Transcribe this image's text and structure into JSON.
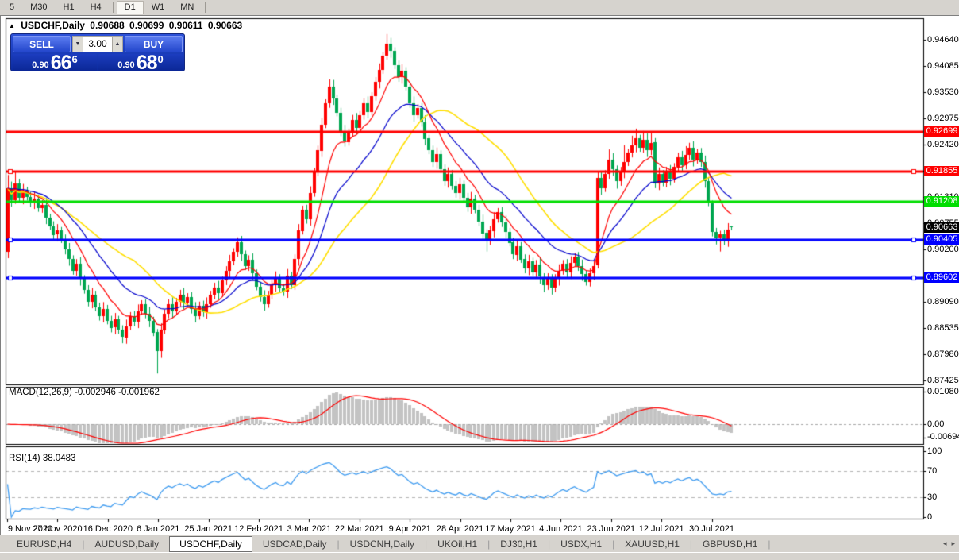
{
  "toolbar": {
    "timeframes": [
      "5",
      "M30",
      "H1",
      "H4",
      "D1",
      "W1",
      "MN"
    ],
    "active": "D1"
  },
  "title": {
    "symbol": "USDCHF,Daily",
    "open": "0.90688",
    "high": "0.90699",
    "low": "0.90611",
    "close": "0.90663"
  },
  "one_click": {
    "sell_label": "SELL",
    "buy_label": "BUY",
    "volume": "3.00",
    "sell_small": "0.90",
    "sell_big": "66",
    "sell_sup": "6",
    "buy_small": "0.90",
    "buy_big": "68",
    "buy_sup": "0"
  },
  "price_axis": {
    "ticks": [
      0.9464,
      0.94085,
      0.9353,
      0.92975,
      0.9242,
      0.91865,
      0.9131,
      0.90755,
      0.902,
      0.89645,
      0.8909,
      0.88535,
      0.8798,
      0.87425
    ],
    "badges": [
      {
        "label": "0.92699",
        "price": 0.92699,
        "color": "#ff0000"
      },
      {
        "label": "0.91855",
        "price": 0.91855,
        "color": "#ff0000"
      },
      {
        "label": "0.91208",
        "price": 0.91208,
        "color": "#00dd00"
      },
      {
        "label": "0.90663",
        "price": 0.90663,
        "color": "#000000"
      },
      {
        "label": "0.90405",
        "price": 0.90405,
        "color": "#0000ff"
      },
      {
        "label": "0.89602",
        "price": 0.89602,
        "color": "#0000ff"
      }
    ]
  },
  "macd_panel": {
    "label": "MACD(12,26,9) -0.002946 -0.001962",
    "axis": [
      "0.010805",
      "0.00",
      "-0.006948"
    ]
  },
  "rsi_panel": {
    "label": "RSI(14) 38.0483",
    "axis": [
      "100",
      "70",
      "30",
      "0"
    ]
  },
  "date_axis": [
    "9 Nov 2020",
    "27 Nov 2020",
    "16 Dec 2020",
    "6 Jan 2021",
    "25 Jan 2021",
    "12 Feb 2021",
    "3 Mar 2021",
    "22 Mar 2021",
    "9 Apr 2021",
    "28 Apr 2021",
    "17 May 2021",
    "4 Jun 2021",
    "23 Jun 2021",
    "12 Jul 2021",
    "30 Jul 2021"
  ],
  "tabs": {
    "items": [
      "EURUSD,H4",
      "AUDUSD,Daily",
      "USDCHF,Daily",
      "USDCAD,Daily",
      "USDCNH,Daily",
      "UKOil,H1",
      "DJ30,H1",
      "USDX,H1",
      "XAUUSD,H1",
      "GBPUSD,H1"
    ],
    "active": "USDCHF,Daily"
  },
  "chart_data": {
    "type": "candlestick",
    "symbol": "USDCHF",
    "timeframe": "Daily",
    "price_range_visible": [
      0.8735,
      0.9509
    ],
    "x_axis_dates": [
      "9 Nov 2020",
      "27 Nov 2020",
      "16 Dec 2020",
      "6 Jan 2021",
      "25 Jan 2021",
      "12 Feb 2021",
      "3 Mar 2021",
      "22 Mar 2021",
      "9 Apr 2021",
      "28 Apr 2021",
      "17 May 2021",
      "4 Jun 2021",
      "23 Jun 2021",
      "12 Jul 2021",
      "30 Jul 2021"
    ],
    "bull_color": "#ff0000",
    "bear_color": "#00a650",
    "candles": [
      [
        0.9015,
        0.9178,
        0.9002,
        0.915
      ],
      [
        0.915,
        0.9164,
        0.9111,
        0.9125
      ],
      [
        0.9125,
        0.9186,
        0.9117,
        0.916
      ],
      [
        0.916,
        0.917,
        0.912,
        0.913
      ],
      [
        0.913,
        0.9159,
        0.9116,
        0.9145
      ],
      [
        0.9145,
        0.9153,
        0.9124,
        0.9132
      ],
      [
        0.9132,
        0.9142,
        0.911,
        0.912
      ],
      [
        0.912,
        0.9142,
        0.9106,
        0.9128
      ],
      [
        0.9128,
        0.9136,
        0.91,
        0.9108
      ],
      [
        0.9108,
        0.9125,
        0.9098,
        0.9115
      ],
      [
        0.9115,
        0.9129,
        0.9074,
        0.9088
      ],
      [
        0.9088,
        0.9096,
        0.9062,
        0.907
      ],
      [
        0.907,
        0.908,
        0.9042,
        0.9052
      ],
      [
        0.9052,
        0.9074,
        0.9038,
        0.906
      ],
      [
        0.906,
        0.9068,
        0.9034,
        0.9042
      ],
      [
        0.9042,
        0.9052,
        0.901,
        0.902
      ],
      [
        0.902,
        0.9034,
        0.8986,
        0.9
      ],
      [
        0.9,
        0.9008,
        0.8967,
        0.8975
      ],
      [
        0.8975,
        0.9,
        0.8965,
        0.899
      ],
      [
        0.899,
        0.9004,
        0.8944,
        0.8958
      ],
      [
        0.8958,
        0.8966,
        0.8927,
        0.8935
      ],
      [
        0.8935,
        0.8945,
        0.89,
        0.891
      ],
      [
        0.891,
        0.8939,
        0.8896,
        0.8925
      ],
      [
        0.8925,
        0.8933,
        0.889,
        0.8898
      ],
      [
        0.8898,
        0.8908,
        0.887,
        0.888
      ],
      [
        0.888,
        0.8909,
        0.8866,
        0.8895
      ],
      [
        0.8895,
        0.8903,
        0.8862,
        0.887
      ],
      [
        0.887,
        0.888,
        0.8845,
        0.8855
      ],
      [
        0.8855,
        0.8886,
        0.8841,
        0.8872
      ],
      [
        0.8872,
        0.888,
        0.8842,
        0.885
      ],
      [
        0.885,
        0.886,
        0.8822,
        0.8835
      ],
      [
        0.8835,
        0.8872,
        0.8821,
        0.8858
      ],
      [
        0.8858,
        0.8888,
        0.885,
        0.888
      ],
      [
        0.888,
        0.889,
        0.8858,
        0.8868
      ],
      [
        0.8868,
        0.8904,
        0.8854,
        0.889
      ],
      [
        0.889,
        0.8913,
        0.8882,
        0.8905
      ],
      [
        0.8905,
        0.8915,
        0.8875,
        0.8885
      ],
      [
        0.8885,
        0.8899,
        0.8856,
        0.887
      ],
      [
        0.887,
        0.8878,
        0.8837,
        0.8845
      ],
      [
        0.8845,
        0.8852,
        0.8758,
        0.8805
      ],
      [
        0.8805,
        0.8864,
        0.8791,
        0.885
      ],
      [
        0.885,
        0.8893,
        0.8842,
        0.8885
      ],
      [
        0.8885,
        0.8915,
        0.8875,
        0.8905
      ],
      [
        0.8905,
        0.8919,
        0.8876,
        0.889
      ],
      [
        0.889,
        0.8918,
        0.8882,
        0.891
      ],
      [
        0.891,
        0.8935,
        0.89,
        0.8925
      ],
      [
        0.8925,
        0.8939,
        0.8894,
        0.8908
      ],
      [
        0.8908,
        0.8928,
        0.89,
        0.892
      ],
      [
        0.892,
        0.893,
        0.8885,
        0.8895
      ],
      [
        0.8895,
        0.8909,
        0.8866,
        0.888
      ],
      [
        0.888,
        0.891,
        0.8872,
        0.8902
      ],
      [
        0.8902,
        0.8912,
        0.8878,
        0.8888
      ],
      [
        0.8888,
        0.8919,
        0.8874,
        0.8905
      ],
      [
        0.8905,
        0.8933,
        0.8897,
        0.8925
      ],
      [
        0.8925,
        0.895,
        0.8915,
        0.894
      ],
      [
        0.894,
        0.8954,
        0.8914,
        0.8928
      ],
      [
        0.8928,
        0.8963,
        0.892,
        0.8955
      ],
      [
        0.8955,
        0.8985,
        0.8945,
        0.8975
      ],
      [
        0.8975,
        0.9009,
        0.8961,
        0.8995
      ],
      [
        0.8995,
        0.9023,
        0.8987,
        0.9015
      ],
      [
        0.9015,
        0.9046,
        0.9005,
        0.9035
      ],
      [
        0.9035,
        0.9049,
        0.8996,
        0.901
      ],
      [
        0.901,
        0.9018,
        0.8977,
        0.8985
      ],
      [
        0.8985,
        0.9008,
        0.8975,
        0.8998
      ],
      [
        0.8998,
        0.9012,
        0.8956,
        0.897
      ],
      [
        0.897,
        0.8978,
        0.8934,
        0.8942
      ],
      [
        0.8942,
        0.8952,
        0.891,
        0.892
      ],
      [
        0.892,
        0.8934,
        0.8891,
        0.8905
      ],
      [
        0.8905,
        0.8933,
        0.8897,
        0.8925
      ],
      [
        0.8925,
        0.8955,
        0.8915,
        0.8945
      ],
      [
        0.8945,
        0.8974,
        0.8931,
        0.896
      ],
      [
        0.896,
        0.8968,
        0.893,
        0.8938
      ],
      [
        0.8938,
        0.8948,
        0.8922,
        0.8932
      ],
      [
        0.8932,
        0.8979,
        0.8918,
        0.8965
      ],
      [
        0.8965,
        0.8973,
        0.8937,
        0.8945
      ],
      [
        0.8945,
        0.901,
        0.8935,
        0.9
      ],
      [
        0.9,
        0.9074,
        0.8986,
        0.906
      ],
      [
        0.906,
        0.9113,
        0.9052,
        0.9105
      ],
      [
        0.9105,
        0.9115,
        0.9075,
        0.9085
      ],
      [
        0.9085,
        0.9154,
        0.9071,
        0.914
      ],
      [
        0.914,
        0.9193,
        0.9132,
        0.9185
      ],
      [
        0.9185,
        0.924,
        0.9175,
        0.923
      ],
      [
        0.923,
        0.9299,
        0.9216,
        0.9285
      ],
      [
        0.9285,
        0.9338,
        0.9277,
        0.933
      ],
      [
        0.933,
        0.938,
        0.932,
        0.9365
      ],
      [
        0.9365,
        0.9379,
        0.9326,
        0.934
      ],
      [
        0.934,
        0.9348,
        0.9302,
        0.931
      ],
      [
        0.931,
        0.932,
        0.926,
        0.927
      ],
      [
        0.927,
        0.9284,
        0.9238,
        0.9248
      ],
      [
        0.9248,
        0.9276,
        0.924,
        0.9268
      ],
      [
        0.9268,
        0.9305,
        0.9258,
        0.9295
      ],
      [
        0.9295,
        0.9309,
        0.9264,
        0.9278
      ],
      [
        0.9278,
        0.9313,
        0.927,
        0.9305
      ],
      [
        0.9305,
        0.934,
        0.9295,
        0.933
      ],
      [
        0.933,
        0.9344,
        0.9298,
        0.9312
      ],
      [
        0.9312,
        0.9353,
        0.9304,
        0.9345
      ],
      [
        0.9345,
        0.9385,
        0.9335,
        0.9375
      ],
      [
        0.9375,
        0.9414,
        0.9361,
        0.94
      ],
      [
        0.94,
        0.9438,
        0.9392,
        0.943
      ],
      [
        0.943,
        0.9476,
        0.9422,
        0.9455
      ],
      [
        0.9455,
        0.9468,
        0.9426,
        0.944
      ],
      [
        0.944,
        0.9448,
        0.9402,
        0.941
      ],
      [
        0.941,
        0.942,
        0.9375,
        0.9385
      ],
      [
        0.9385,
        0.9412,
        0.9371,
        0.9398
      ],
      [
        0.9398,
        0.9406,
        0.9357,
        0.9365
      ],
      [
        0.9365,
        0.9375,
        0.932,
        0.933
      ],
      [
        0.933,
        0.9344,
        0.9291,
        0.9305
      ],
      [
        0.9305,
        0.9328,
        0.9297,
        0.932
      ],
      [
        0.932,
        0.933,
        0.928,
        0.929
      ],
      [
        0.929,
        0.9304,
        0.9241,
        0.9255
      ],
      [
        0.9255,
        0.9263,
        0.9222,
        0.923
      ],
      [
        0.923,
        0.924,
        0.9195,
        0.9205
      ],
      [
        0.9205,
        0.9236,
        0.9191,
        0.9222
      ],
      [
        0.9222,
        0.923,
        0.9182,
        0.919
      ],
      [
        0.919,
        0.92,
        0.9155,
        0.9165
      ],
      [
        0.9165,
        0.9194,
        0.9151,
        0.918
      ],
      [
        0.918,
        0.9188,
        0.9147,
        0.9155
      ],
      [
        0.9155,
        0.9165,
        0.913,
        0.914
      ],
      [
        0.914,
        0.9172,
        0.9126,
        0.9158
      ],
      [
        0.9158,
        0.9166,
        0.9122,
        0.913
      ],
      [
        0.913,
        0.914,
        0.91,
        0.911
      ],
      [
        0.911,
        0.9142,
        0.9096,
        0.9128
      ],
      [
        0.9128,
        0.9136,
        0.9097,
        0.9105
      ],
      [
        0.9105,
        0.9115,
        0.907,
        0.908
      ],
      [
        0.908,
        0.9094,
        0.9041,
        0.9055
      ],
      [
        0.9055,
        0.9063,
        0.9016,
        0.904
      ],
      [
        0.904,
        0.907,
        0.903,
        0.906
      ],
      [
        0.906,
        0.9099,
        0.9046,
        0.9085
      ],
      [
        0.9085,
        0.9108,
        0.9077,
        0.91
      ],
      [
        0.91,
        0.911,
        0.9068,
        0.9078
      ],
      [
        0.9078,
        0.9092,
        0.9044,
        0.9058
      ],
      [
        0.9058,
        0.9066,
        0.9027,
        0.9035
      ],
      [
        0.9035,
        0.9045,
        0.9,
        0.901
      ],
      [
        0.901,
        0.9042,
        0.8996,
        0.9028
      ],
      [
        0.9028,
        0.9036,
        0.8992,
        0.9
      ],
      [
        0.9,
        0.901,
        0.897,
        0.898
      ],
      [
        0.898,
        0.9009,
        0.8966,
        0.8995
      ],
      [
        0.8995,
        0.9003,
        0.8964,
        0.8972
      ],
      [
        0.8972,
        0.8998,
        0.8962,
        0.8988
      ],
      [
        0.8988,
        0.9002,
        0.8948,
        0.8962
      ],
      [
        0.8962,
        0.897,
        0.893,
        0.8945
      ],
      [
        0.8945,
        0.897,
        0.8935,
        0.896
      ],
      [
        0.896,
        0.8968,
        0.8925,
        0.894
      ],
      [
        0.894,
        0.8968,
        0.893,
        0.8958
      ],
      [
        0.8958,
        0.8989,
        0.8944,
        0.8975
      ],
      [
        0.8975,
        0.8998,
        0.8967,
        0.899
      ],
      [
        0.899,
        0.9,
        0.8962,
        0.8972
      ],
      [
        0.8972,
        0.9006,
        0.8958,
        0.8992
      ],
      [
        0.8992,
        0.9013,
        0.8984,
        0.9005
      ],
      [
        0.9005,
        0.9015,
        0.8975,
        0.8985
      ],
      [
        0.8985,
        0.8999,
        0.8954,
        0.8968
      ],
      [
        0.8968,
        0.8976,
        0.8944,
        0.8952
      ],
      [
        0.8952,
        0.898,
        0.8942,
        0.897
      ],
      [
        0.897,
        0.8999,
        0.8956,
        0.8985
      ],
      [
        0.8988,
        0.9184,
        0.898,
        0.9172
      ],
      [
        0.9172,
        0.9186,
        0.9136,
        0.915
      ],
      [
        0.915,
        0.9188,
        0.9142,
        0.918
      ],
      [
        0.918,
        0.9232,
        0.917,
        0.921
      ],
      [
        0.921,
        0.9224,
        0.9176,
        0.919
      ],
      [
        0.919,
        0.9198,
        0.9149,
        0.9165
      ],
      [
        0.9165,
        0.9195,
        0.9155,
        0.9185
      ],
      [
        0.9185,
        0.9241,
        0.9171,
        0.9205
      ],
      [
        0.9205,
        0.9233,
        0.9197,
        0.9225
      ],
      [
        0.9225,
        0.9261,
        0.9215,
        0.924
      ],
      [
        0.924,
        0.9276,
        0.9226,
        0.9255
      ],
      [
        0.9255,
        0.9263,
        0.9227,
        0.9235
      ],
      [
        0.9235,
        0.9271,
        0.9225,
        0.9252
      ],
      [
        0.9252,
        0.9266,
        0.9216,
        0.923
      ],
      [
        0.923,
        0.9267,
        0.922,
        0.9245
      ],
      [
        0.9248,
        0.9256,
        0.915,
        0.916
      ],
      [
        0.916,
        0.9194,
        0.9146,
        0.918
      ],
      [
        0.918,
        0.9188,
        0.9154,
        0.9162
      ],
      [
        0.9162,
        0.9195,
        0.9152,
        0.9185
      ],
      [
        0.9185,
        0.9199,
        0.9156,
        0.917
      ],
      [
        0.917,
        0.9203,
        0.9162,
        0.9195
      ],
      [
        0.9195,
        0.9225,
        0.9185,
        0.9215
      ],
      [
        0.9215,
        0.9229,
        0.9184,
        0.9198
      ],
      [
        0.9198,
        0.9239,
        0.919,
        0.922
      ],
      [
        0.922,
        0.9246,
        0.921,
        0.9235
      ],
      [
        0.9235,
        0.9249,
        0.9196,
        0.921
      ],
      [
        0.921,
        0.9233,
        0.9202,
        0.9225
      ],
      [
        0.9225,
        0.9235,
        0.9195,
        0.9205
      ],
      [
        0.9205,
        0.9219,
        0.9151,
        0.9165
      ],
      [
        0.9165,
        0.9173,
        0.9112,
        0.912
      ],
      [
        0.9118,
        0.9124,
        0.9048,
        0.9058
      ],
      [
        0.9058,
        0.9066,
        0.9031,
        0.9045
      ],
      [
        0.9045,
        0.906,
        0.9016,
        0.9052
      ],
      [
        0.9052,
        0.9062,
        0.903,
        0.904
      ],
      [
        0.904,
        0.9076,
        0.9026,
        0.9062
      ],
      [
        0.90688,
        0.90699,
        0.90611,
        0.90663
      ]
    ],
    "moving_averages": [
      {
        "type": "EMA",
        "period": 10,
        "color": "#ff0000"
      },
      {
        "type": "EMA",
        "period": 22,
        "color": "#0000cc"
      },
      {
        "type": "SMA",
        "period": 34,
        "color": "#ffdf00"
      }
    ],
    "horizontal_lines": [
      {
        "price": 0.92699,
        "color": "#ff0000",
        "handles": false
      },
      {
        "price": 0.91855,
        "color": "#ff0000",
        "handles": true
      },
      {
        "price": 0.91208,
        "color": "#00dd00",
        "handles": false
      },
      {
        "price": 0.90405,
        "color": "#0000ff",
        "handles": true
      },
      {
        "price": 0.89602,
        "color": "#0000ff",
        "handles": true
      }
    ],
    "last_price": 0.90663,
    "macd": {
      "fast": 12,
      "slow": 26,
      "signal": 9,
      "value": -0.002946,
      "signal_value": -0.001962,
      "axis_max": 0.010805,
      "axis_min": -0.006948,
      "histogram_color": "#c3c3c3",
      "signal_color": "#ff0000"
    },
    "rsi": {
      "period": 14,
      "value": 38.0483,
      "levels": [
        70,
        30
      ],
      "color": "#3e9bf0"
    }
  }
}
